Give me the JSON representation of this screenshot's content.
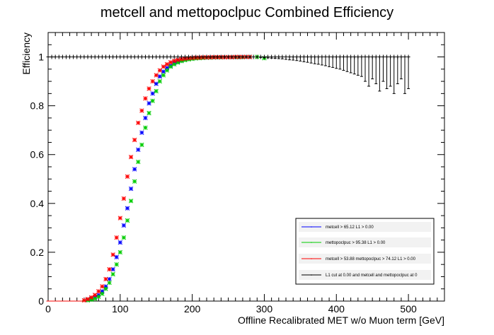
{
  "chart_data": {
    "type": "scatter",
    "title": "metcell and mettopoclpuc Combined Efficiency",
    "xlabel": "Offline Recalibrated MET w/o Muon term [GeV]",
    "ylabel": "Efficiency",
    "xlim": [
      0,
      550
    ],
    "ylim": [
      0,
      1.1
    ],
    "x_ticks": [
      "0",
      "100",
      "200",
      "300",
      "400",
      "500"
    ],
    "y_ticks": [
      "0",
      "0.2",
      "0.4",
      "0.6",
      "0.8",
      "1"
    ],
    "grid": false,
    "legend_position": "bottom-right",
    "legend": [
      "metcell >  65.12 L1 > 0.00",
      "mettopoclpuc >  95.38 L1 > 0.00",
      "metcell >  53.88 mettopoclpuc >  74.12  L1 > 0.00",
      "L1 cut at  0.00 and metcell and mettopoclpuc at 0"
    ],
    "series": [
      {
        "color": "#0000ff",
        "marker": "star",
        "x": [
          0,
          5,
          10,
          15,
          20,
          25,
          30,
          35,
          40,
          45,
          50,
          55,
          60,
          65,
          70,
          75,
          80,
          85,
          90,
          95,
          100,
          105,
          110,
          115,
          120,
          125,
          130,
          135,
          140,
          145,
          150,
          155,
          160,
          165,
          170,
          175,
          180,
          185,
          190,
          195,
          200,
          205,
          210,
          215,
          220,
          225,
          230,
          235,
          240,
          245,
          250,
          255,
          260,
          265,
          270,
          275,
          280
        ],
        "y": [
          0,
          0,
          0,
          0,
          0,
          0,
          0,
          0,
          0,
          0,
          0.002,
          0.005,
          0.01,
          0.015,
          0.025,
          0.04,
          0.06,
          0.09,
          0.13,
          0.18,
          0.24,
          0.31,
          0.38,
          0.46,
          0.54,
          0.62,
          0.69,
          0.75,
          0.81,
          0.85,
          0.89,
          0.92,
          0.94,
          0.955,
          0.965,
          0.975,
          0.98,
          0.985,
          0.99,
          0.992,
          0.994,
          0.995,
          0.996,
          0.997,
          0.997,
          0.998,
          0.998,
          0.998,
          0.999,
          0.999,
          0.999,
          0.999,
          0.999,
          0.999,
          1.0,
          1.0,
          1.0
        ]
      },
      {
        "color": "#00cc00",
        "marker": "star",
        "x": [
          0,
          5,
          10,
          15,
          20,
          25,
          30,
          35,
          40,
          45,
          50,
          55,
          60,
          65,
          70,
          75,
          80,
          85,
          90,
          95,
          100,
          105,
          110,
          115,
          120,
          125,
          130,
          135,
          140,
          145,
          150,
          155,
          160,
          165,
          170,
          175,
          180,
          185,
          190,
          195,
          200,
          205,
          210,
          215,
          220,
          225,
          230,
          235,
          240,
          245,
          250,
          255,
          260,
          265,
          270,
          275,
          280,
          290,
          300
        ],
        "y": [
          0,
          0,
          0,
          0,
          0,
          0,
          0,
          0,
          0,
          0,
          0.001,
          0.003,
          0.006,
          0.01,
          0.018,
          0.03,
          0.05,
          0.075,
          0.11,
          0.15,
          0.2,
          0.26,
          0.33,
          0.41,
          0.49,
          0.57,
          0.64,
          0.71,
          0.77,
          0.82,
          0.86,
          0.9,
          0.925,
          0.945,
          0.96,
          0.97,
          0.977,
          0.983,
          0.987,
          0.99,
          0.992,
          0.994,
          0.995,
          0.996,
          0.997,
          0.997,
          0.998,
          0.998,
          0.998,
          0.999,
          0.999,
          0.999,
          0.999,
          0.999,
          0.999,
          1.0,
          1.0,
          1.0,
          0.995
        ]
      },
      {
        "color": "#ff0000",
        "marker": "star",
        "x": [
          0,
          5,
          10,
          15,
          20,
          25,
          30,
          35,
          40,
          45,
          50,
          55,
          60,
          65,
          70,
          75,
          80,
          85,
          90,
          95,
          100,
          105,
          110,
          115,
          120,
          125,
          130,
          135,
          140,
          145,
          150,
          155,
          160,
          165,
          170,
          175,
          180,
          185,
          190,
          195,
          200,
          205,
          210,
          215,
          220,
          225,
          230,
          235,
          240,
          245,
          250,
          255,
          260,
          265,
          270,
          275,
          280
        ],
        "y": [
          0,
          0,
          0,
          0,
          0,
          0,
          0,
          0,
          0,
          0,
          0.003,
          0.008,
          0.015,
          0.025,
          0.04,
          0.06,
          0.09,
          0.13,
          0.19,
          0.26,
          0.34,
          0.42,
          0.51,
          0.59,
          0.66,
          0.73,
          0.78,
          0.83,
          0.87,
          0.9,
          0.925,
          0.945,
          0.96,
          0.97,
          0.978,
          0.984,
          0.988,
          0.991,
          0.993,
          0.995,
          0.996,
          0.997,
          0.997,
          0.998,
          0.998,
          0.998,
          0.999,
          0.999,
          0.999,
          0.999,
          0.999,
          0.999,
          1.0,
          1.0,
          1.0,
          1.0,
          1.0
        ]
      },
      {
        "color": "#000000",
        "marker": "errorbar",
        "x_start": 0,
        "x_step": 5,
        "y": 1.0,
        "lower_errors": [
          0,
          0,
          0,
          0,
          0,
          0,
          0,
          0,
          0,
          0,
          0,
          0,
          0,
          0,
          0,
          0,
          0,
          0,
          0,
          0,
          0,
          0,
          0,
          0,
          0,
          0,
          0,
          0,
          0,
          0,
          0,
          0,
          0,
          0,
          0,
          0,
          0,
          0,
          0,
          0,
          0,
          0,
          0,
          0,
          0,
          0,
          0,
          0,
          0,
          0,
          0,
          0,
          0,
          0,
          0,
          0,
          0,
          0,
          0,
          0.002,
          0.003,
          0.004,
          0.005,
          0.006,
          0.007,
          0.008,
          0.01,
          0.012,
          0.013,
          0.015,
          0.017,
          0.02,
          0.022,
          0.025,
          0.028,
          0.03,
          0.033,
          0.036,
          0.04,
          0.043,
          0.047,
          0.05,
          0.055,
          0.06,
          0.065,
          0.07,
          0.075,
          0.08,
          0.1,
          0.12,
          0.09,
          0.11,
          0.14,
          0.1,
          0.13,
          0.12,
          0.15,
          0.11,
          0.09,
          0.15,
          0.13
        ]
      }
    ]
  }
}
